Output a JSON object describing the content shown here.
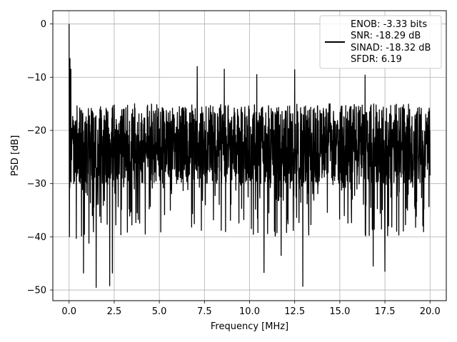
{
  "chart_data": {
    "type": "line",
    "xlabel": "Frequency [MHz]",
    "ylabel": "PSD [dB]",
    "xlim": [
      -0.9,
      20.9
    ],
    "ylim": [
      -52.0,
      2.5
    ],
    "x_ticks": [
      0.0,
      2.5,
      5.0,
      7.5,
      10.0,
      12.5,
      15.0,
      17.5,
      20.0
    ],
    "x_tick_labels": [
      "0.0",
      "2.5",
      "5.0",
      "7.5",
      "10.0",
      "12.5",
      "15.0",
      "17.5",
      "20.0"
    ],
    "y_ticks": [
      0,
      -10,
      -20,
      -30,
      -40,
      -50
    ],
    "y_tick_labels": [
      "0",
      "−10",
      "−20",
      "−30",
      "−40",
      "−50"
    ],
    "grid": true,
    "legend_position": "top-right",
    "series": [
      {
        "color": "#000000",
        "x_range": [
          0.0,
          20.0
        ],
        "description_values": {
          "peak": {
            "x": 0.0,
            "y": 0.0
          },
          "noise_band_top_typical": -15,
          "noise_band_bottom_typical": -30,
          "noise_median": -22,
          "notable_peaks": [
            {
              "x": 0.05,
              "y": -6.5
            },
            {
              "x": 0.1,
              "y": -8.5
            },
            {
              "x": 7.1,
              "y": -8.0
            },
            {
              "x": 8.6,
              "y": -8.5
            },
            {
              "x": 12.5,
              "y": -8.6
            },
            {
              "x": 10.4,
              "y": -9.5
            },
            {
              "x": 16.4,
              "y": -9.6
            }
          ],
          "notable_dips": [
            {
              "x": 1.5,
              "y": -49.5
            },
            {
              "x": 2.25,
              "y": -49.2
            },
            {
              "x": 12.95,
              "y": -49.3
            },
            {
              "x": 2.4,
              "y": -46.8
            },
            {
              "x": 0.8,
              "y": -46.8
            },
            {
              "x": 17.5,
              "y": -46.5
            },
            {
              "x": 10.8,
              "y": -46.7
            },
            {
              "x": 11.75,
              "y": -43.5
            },
            {
              "x": 16.85,
              "y": -45.5
            },
            {
              "x": 1.1,
              "y": -41.2
            },
            {
              "x": 0.4,
              "y": -40.3
            }
          ]
        }
      }
    ],
    "legend_entries": [
      "ENOB: -3.33 bits",
      "SNR: -18.29 dB",
      "SINAD: -18.32 dB",
      "SFDR: 6.19"
    ]
  },
  "colors": {
    "line": "#000000",
    "grid": "#b0b0b0",
    "axes": "#000000",
    "legend_frame": "#cccccc",
    "background": "#ffffff"
  }
}
